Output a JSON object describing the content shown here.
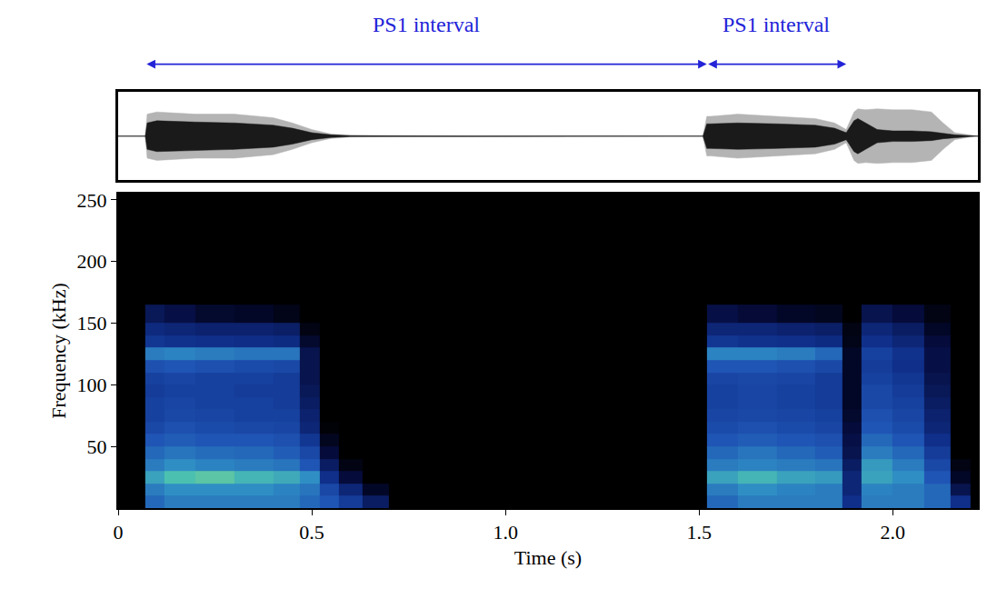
{
  "chart_data": [
    {
      "type": "area",
      "x": [
        0,
        0.07,
        0.075,
        0.1,
        0.2,
        0.3,
        0.4,
        0.45,
        0.5,
        0.55,
        0.6,
        0.7,
        1.0,
        1.51,
        1.52,
        1.53,
        1.6,
        1.7,
        1.8,
        1.85,
        1.88,
        1.9,
        1.91,
        1.93,
        1.96,
        2.0,
        2.05,
        2.1,
        2.13,
        2.16,
        2.2,
        2.22
      ],
      "series": [
        {
          "color": "#b4b4b4",
          "values": [
            0,
            0,
            0.5,
            0.55,
            0.5,
            0.5,
            0.42,
            0.3,
            0.15,
            0.05,
            0.02,
            0.01,
            0,
            0,
            0.45,
            0.45,
            0.5,
            0.45,
            0.4,
            0.3,
            0.15,
            0.55,
            0.62,
            0.6,
            0.62,
            0.6,
            0.6,
            0.55,
            0.3,
            0.08,
            0.02,
            0
          ]
        },
        {
          "color": "#1a1a1a",
          "values": [
            0,
            0,
            0.3,
            0.35,
            0.32,
            0.3,
            0.25,
            0.18,
            0.08,
            0.03,
            0.01,
            0.005,
            0,
            0,
            0.28,
            0.28,
            0.3,
            0.28,
            0.25,
            0.18,
            0.08,
            0.35,
            0.4,
            0.3,
            0.15,
            0.12,
            0.12,
            0.1,
            0.06,
            0.03,
            0.01,
            0
          ]
        }
      ],
      "xlim": [
        0,
        2.22
      ],
      "ylim": [
        -1,
        1
      ],
      "tick_labels": false,
      "annotations": [
        {
          "text": "PS1 interval",
          "x": [
            0.07,
            1.52
          ]
        },
        {
          "text": "PS1 interval",
          "x": [
            1.52,
            1.88
          ]
        }
      ]
    },
    {
      "type": "heatmap",
      "x_label": "Time (s)",
      "y_label": "Frequency (kHz)",
      "time_edges": [
        0.07,
        0.12,
        0.2,
        0.3,
        0.4,
        0.47,
        0.52,
        0.57,
        0.63,
        0.7,
        1.52,
        1.6,
        1.7,
        1.8,
        1.87,
        1.92,
        2.0,
        2.08,
        2.15,
        2.2
      ],
      "frequency_edges": [
        0,
        10,
        20,
        30,
        40,
        50,
        60,
        70,
        80,
        90,
        100,
        110,
        120,
        130,
        140,
        150,
        165
      ],
      "cells": [
        [
          0.55,
          0.6,
          0.6,
          0.6,
          0.6,
          0.55,
          0.5,
          0.4,
          0.25,
          0,
          0.55,
          0.6,
          0.6,
          0.6,
          0.35,
          0.6,
          0.6,
          0.55,
          0.35
        ],
        [
          0.6,
          0.65,
          0.65,
          0.65,
          0.62,
          0.58,
          0.45,
          0.3,
          0.1,
          0,
          0.6,
          0.65,
          0.62,
          0.6,
          0.3,
          0.62,
          0.6,
          0.55,
          0.2
        ],
        [
          0.7,
          0.78,
          0.8,
          0.75,
          0.72,
          0.65,
          0.35,
          0.15,
          0,
          0,
          0.7,
          0.75,
          0.7,
          0.68,
          0.3,
          0.7,
          0.65,
          0.5,
          0.1
        ],
        [
          0.6,
          0.65,
          0.62,
          0.6,
          0.58,
          0.5,
          0.25,
          0.05,
          0,
          0,
          0.6,
          0.62,
          0.6,
          0.58,
          0.25,
          0.68,
          0.6,
          0.45,
          0.05
        ],
        [
          0.55,
          0.58,
          0.56,
          0.55,
          0.52,
          0.45,
          0.15,
          0,
          0,
          0,
          0.55,
          0.58,
          0.55,
          0.52,
          0.2,
          0.6,
          0.55,
          0.4,
          0
        ],
        [
          0.5,
          0.52,
          0.5,
          0.5,
          0.48,
          0.38,
          0.08,
          0,
          0,
          0,
          0.5,
          0.52,
          0.5,
          0.48,
          0.18,
          0.55,
          0.5,
          0.35,
          0
        ],
        [
          0.45,
          0.48,
          0.46,
          0.45,
          0.44,
          0.3,
          0.02,
          0,
          0,
          0,
          0.46,
          0.48,
          0.46,
          0.44,
          0.15,
          0.5,
          0.46,
          0.3,
          0
        ],
        [
          0.42,
          0.45,
          0.44,
          0.42,
          0.42,
          0.28,
          0,
          0,
          0,
          0,
          0.44,
          0.45,
          0.44,
          0.42,
          0.12,
          0.48,
          0.44,
          0.28,
          0
        ],
        [
          0.42,
          0.44,
          0.42,
          0.42,
          0.4,
          0.25,
          0,
          0,
          0,
          0,
          0.42,
          0.44,
          0.42,
          0.4,
          0.1,
          0.45,
          0.42,
          0.25,
          0
        ],
        [
          0.4,
          0.42,
          0.42,
          0.4,
          0.4,
          0.22,
          0,
          0,
          0,
          0,
          0.42,
          0.44,
          0.42,
          0.4,
          0.1,
          0.45,
          0.4,
          0.22,
          0
        ],
        [
          0.42,
          0.44,
          0.42,
          0.42,
          0.4,
          0.2,
          0,
          0,
          0,
          0,
          0.44,
          0.45,
          0.44,
          0.4,
          0.1,
          0.42,
          0.38,
          0.2,
          0
        ],
        [
          0.48,
          0.5,
          0.48,
          0.46,
          0.45,
          0.2,
          0,
          0,
          0,
          0,
          0.5,
          0.5,
          0.48,
          0.45,
          0.1,
          0.4,
          0.35,
          0.18,
          0
        ],
        [
          0.6,
          0.62,
          0.6,
          0.58,
          0.58,
          0.2,
          0,
          0,
          0,
          0,
          0.62,
          0.62,
          0.6,
          0.55,
          0.1,
          0.42,
          0.36,
          0.18,
          0
        ],
        [
          0.38,
          0.36,
          0.35,
          0.34,
          0.33,
          0.12,
          0,
          0,
          0,
          0,
          0.38,
          0.36,
          0.35,
          0.33,
          0.06,
          0.35,
          0.3,
          0.15,
          0
        ],
        [
          0.32,
          0.3,
          0.28,
          0.28,
          0.26,
          0.05,
          0,
          0,
          0,
          0,
          0.3,
          0.3,
          0.28,
          0.26,
          0.05,
          0.3,
          0.25,
          0.1,
          0
        ],
        [
          0.22,
          0.18,
          0.12,
          0.1,
          0.06,
          0,
          0,
          0,
          0,
          0,
          0.18,
          0.14,
          0.1,
          0.08,
          0,
          0.2,
          0.15,
          0.05,
          0
        ]
      ],
      "zlim": [
        0,
        1
      ],
      "xlim": [
        0,
        2.22
      ],
      "ylim": [
        0,
        255
      ],
      "xticks": [
        0,
        0.5,
        {
          "value": 1,
          "label": "1.0"
        },
        1.5,
        {
          "value": 2,
          "label": "2.0"
        }
      ],
      "yticks": [
        50,
        100,
        150,
        200,
        250
      ]
    }
  ]
}
